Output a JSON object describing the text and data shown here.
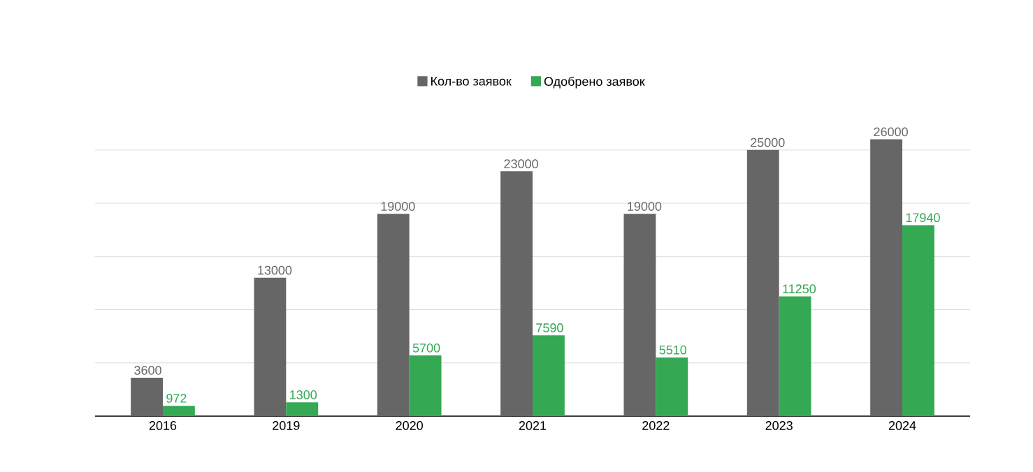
{
  "chart_data": {
    "type": "bar",
    "categories": [
      "2016",
      "2019",
      "2020",
      "2021",
      "2022",
      "2023",
      "2024"
    ],
    "series": [
      {
        "name": "Кол-во заявок",
        "color": "#666666",
        "values": [
          3600,
          13000,
          19000,
          23000,
          19000,
          25000,
          26000
        ]
      },
      {
        "name": "Одобрено заявок",
        "color": "#34a853",
        "values": [
          972,
          1300,
          5700,
          7590,
          5510,
          11250,
          17940
        ]
      }
    ],
    "tick_labels": "x",
    "grid": "y",
    "legend": "top",
    "data_labels": true
  }
}
